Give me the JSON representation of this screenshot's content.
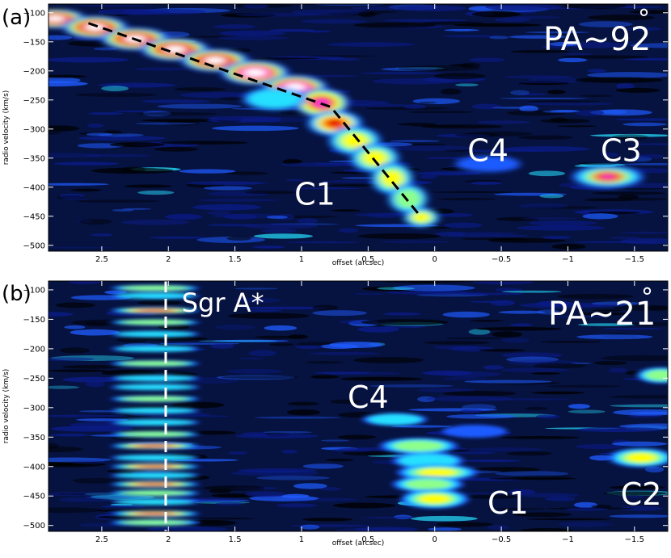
{
  "chart_data": [
    {
      "type": "heatmap",
      "panel_label": "(a)",
      "pa_label": "PA~92",
      "degree_symbol": "°",
      "xlabel": "offset (arcsec)",
      "ylabel": "radio velocity (km/s)",
      "xlim": [
        2.9,
        -1.75
      ],
      "ylim": [
        -510,
        -85
      ],
      "xticks": [
        2.5,
        2,
        1.5,
        1,
        0.5,
        0,
        -0.5,
        -1,
        -1.5
      ],
      "xtick_labels": [
        "2.5",
        "2",
        "1.5",
        "1",
        "0.5",
        "0",
        "−0.5",
        "−1",
        "−1.5"
      ],
      "yticks": [
        -100,
        -150,
        -200,
        -250,
        -300,
        -350,
        -400,
        -450,
        -500
      ],
      "ytick_labels": [
        "−100",
        "−150",
        "−200",
        "−250",
        "−300",
        "−350",
        "−400",
        "−450",
        "−500"
      ],
      "colormap": [
        "#000000",
        "#0b1c8c",
        "#1f5bff",
        "#27e0ff",
        "#8dff8a",
        "#ffff00",
        "#ff8a00",
        "#e60000",
        "#ff3ad2",
        "#ffffff"
      ],
      "ridge_line": [
        {
          "x": 2.6,
          "y": -118
        },
        {
          "x": 0.78,
          "y": -262
        },
        {
          "x": 0.1,
          "y": -452
        }
      ],
      "annotations": [
        {
          "text": "C4",
          "x": -0.4,
          "y": -355
        },
        {
          "text": "C3",
          "x": -1.4,
          "y": -355
        },
        {
          "text": "C1",
          "x": 0.9,
          "y": -430
        }
      ]
    },
    {
      "type": "heatmap",
      "panel_label": "(b)",
      "pa_label": "PA~21",
      "degree_symbol": "°",
      "xlabel": "offset (arcsec)",
      "ylabel": "radio velocity (km/s)",
      "xlim": [
        2.9,
        -1.75
      ],
      "ylim": [
        -510,
        -85
      ],
      "xticks": [
        2.5,
        2,
        1.5,
        1,
        0.5,
        0,
        -0.5,
        -1,
        -1.5
      ],
      "xtick_labels": [
        "2.5",
        "2",
        "1.5",
        "1",
        "0.5",
        "0",
        "−0.5",
        "−1",
        "−1.5"
      ],
      "yticks": [
        -100,
        -150,
        -200,
        -250,
        -300,
        -350,
        -400,
        -450,
        -500
      ],
      "ytick_labels": [
        "−100",
        "−150",
        "−200",
        "−250",
        "−300",
        "−350",
        "−400",
        "−450",
        "−500"
      ],
      "colormap": [
        "#000000",
        "#0b1c8c",
        "#1f5bff",
        "#27e0ff",
        "#8dff8a",
        "#ffff00",
        "#ff8a00",
        "#e60000",
        "#ff3ad2",
        "#ffffff"
      ],
      "sgr_a_offset": 2.02,
      "annotations": [
        {
          "text": "Sgr A*",
          "x": 1.9,
          "y": -137
        },
        {
          "text": "C4",
          "x": 0.5,
          "y": -300
        },
        {
          "text": "C1",
          "x": -0.55,
          "y": -480
        },
        {
          "text": "C2",
          "x": -1.55,
          "y": -465
        }
      ]
    }
  ]
}
